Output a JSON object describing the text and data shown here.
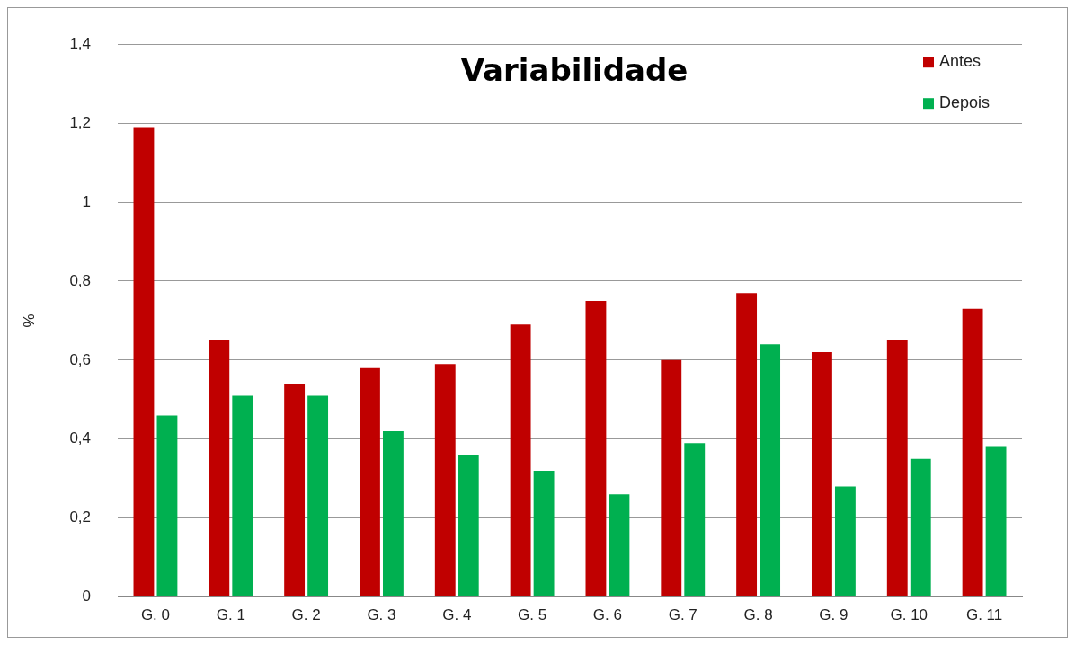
{
  "chart_data": {
    "type": "bar",
    "title": "Variabilidade",
    "ylabel": "%",
    "categories": [
      "G. 0",
      "G. 1",
      "G. 2",
      "G. 3",
      "G. 4",
      "G. 5",
      "G. 6",
      "G. 7",
      "G. 8",
      "G. 9",
      "G. 10",
      "G. 11"
    ],
    "series": [
      {
        "name": "Antes",
        "color": "#c00000",
        "values": [
          1.19,
          0.65,
          0.54,
          0.58,
          0.59,
          0.69,
          0.75,
          0.6,
          0.77,
          0.62,
          0.65,
          0.73
        ]
      },
      {
        "name": "Depois",
        "color": "#00b050",
        "values": [
          0.46,
          0.51,
          0.51,
          0.42,
          0.36,
          0.32,
          0.26,
          0.39,
          0.64,
          0.28,
          0.35,
          0.38
        ]
      }
    ],
    "ylim": [
      0,
      1.4
    ],
    "yticks": [
      0,
      {
        "value": 0.2,
        "label": "0,2"
      },
      {
        "value": 0.4,
        "label": "0,4"
      },
      {
        "value": 0.6,
        "label": "0,6"
      },
      {
        "value": 0.8,
        "label": "0,8"
      },
      1,
      {
        "value": 1.2,
        "label": "1,2"
      },
      {
        "value": 1.4,
        "label": "1,4"
      }
    ],
    "grid": "y",
    "legend": "top right"
  }
}
